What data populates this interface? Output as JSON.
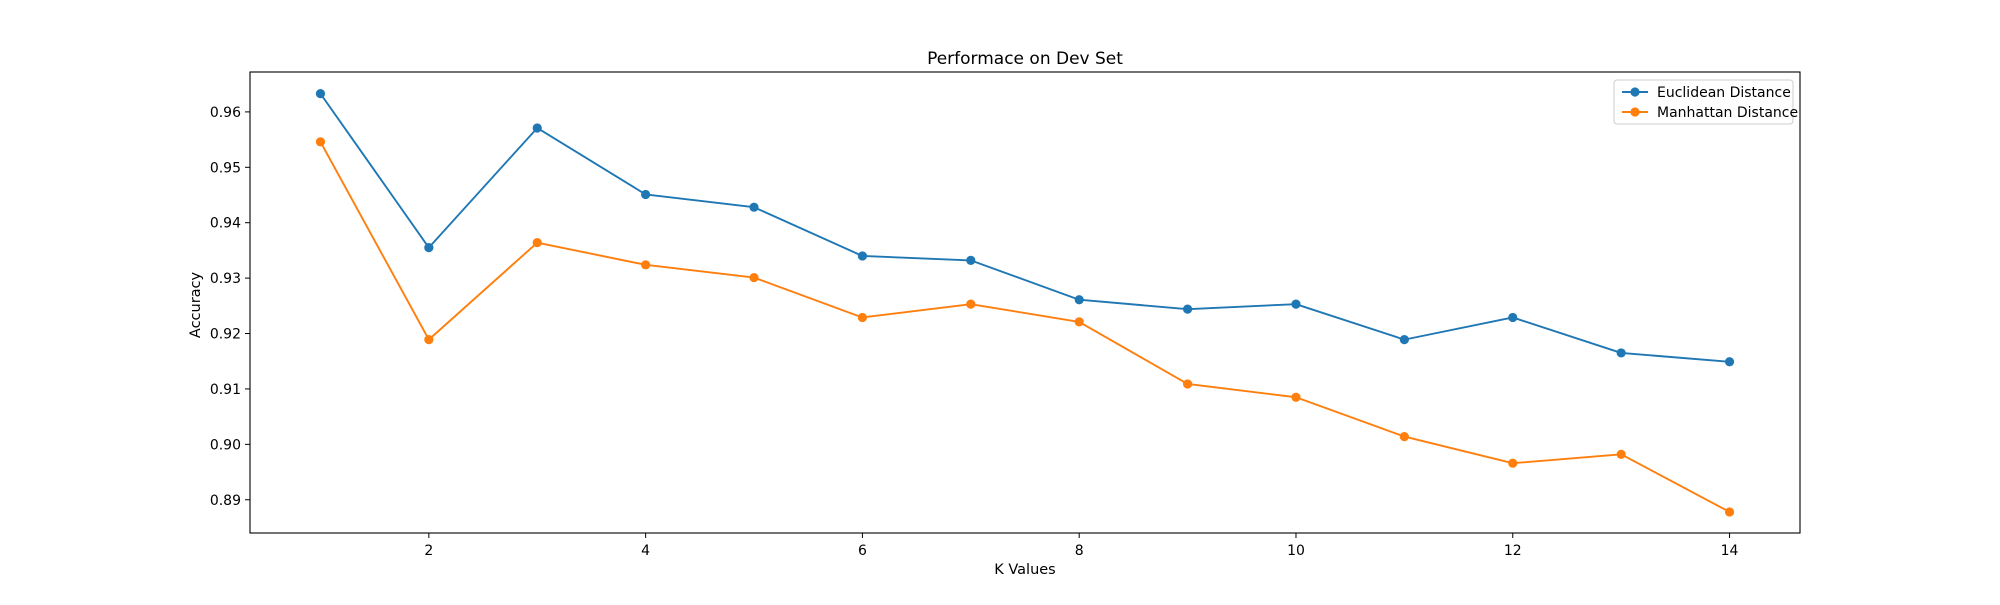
{
  "chart_data": {
    "type": "line",
    "title": "Performace on Dev Set",
    "xlabel": "K Values",
    "ylabel": "Accuracy",
    "x": [
      1,
      2,
      3,
      4,
      5,
      6,
      7,
      8,
      9,
      10,
      11,
      12,
      13,
      14
    ],
    "series": [
      {
        "name": "Euclidean Distance",
        "color": "#1f77b4",
        "values": [
          0.9633,
          0.9355,
          0.9571,
          0.9451,
          0.9428,
          0.934,
          0.9332,
          0.9261,
          0.9244,
          0.9253,
          0.9189,
          0.9229,
          0.9165,
          0.9149
        ]
      },
      {
        "name": "Manhattan Distance",
        "color": "#ff7f0e",
        "values": [
          0.9546,
          0.9189,
          0.9364,
          0.9324,
          0.9301,
          0.9229,
          0.9253,
          0.9221,
          0.9109,
          0.9085,
          0.9014,
          0.8966,
          0.8982,
          0.8878
        ]
      }
    ],
    "xticks": [
      2,
      4,
      6,
      8,
      10,
      12,
      14
    ],
    "yticks": [
      0.89,
      0.9,
      0.91,
      0.92,
      0.93,
      0.94,
      0.95,
      0.96
    ],
    "ytick_labels": [
      "0.89",
      "0.90",
      "0.91",
      "0.92",
      "0.93",
      "0.94",
      "0.95",
      "0.96"
    ],
    "xlim": [
      0.35,
      14.65
    ],
    "ylim": [
      0.884,
      0.9672
    ],
    "grid": false,
    "legend_position": "top-right",
    "markers": "circle"
  }
}
